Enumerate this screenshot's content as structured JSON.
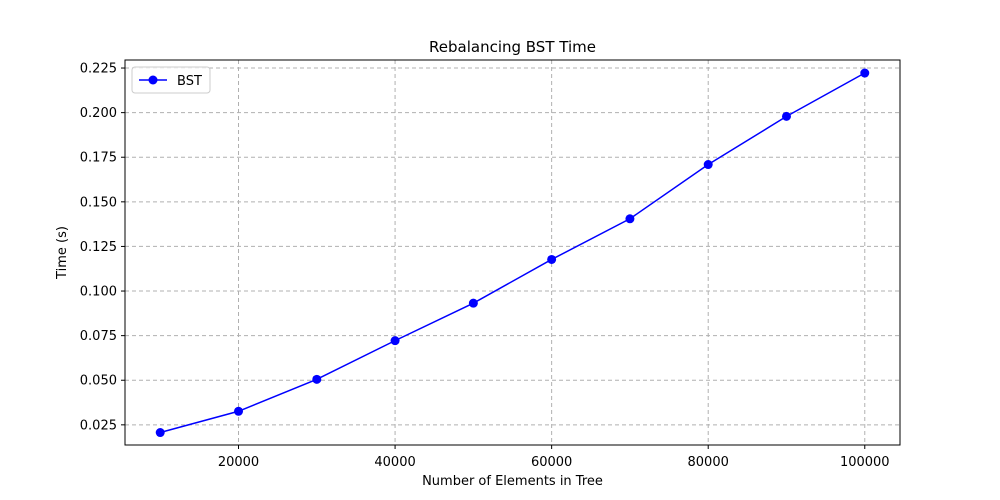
{
  "chart_data": {
    "type": "line",
    "title": "Rebalancing BST Time",
    "xlabel": "Number of Elements in Tree",
    "ylabel": "Time (s)",
    "xlim": [
      5500,
      104500
    ],
    "ylim": [
      0.0137,
      0.2295
    ],
    "x_ticks": [
      20000,
      40000,
      60000,
      80000,
      100000
    ],
    "x_tick_labels": [
      "20000",
      "40000",
      "60000",
      "80000",
      "100000"
    ],
    "y_ticks": [
      0.025,
      0.05,
      0.075,
      0.1,
      0.125,
      0.15,
      0.175,
      0.2,
      0.225
    ],
    "y_tick_labels": [
      "0.025",
      "0.050",
      "0.075",
      "0.100",
      "0.125",
      "0.150",
      "0.175",
      "0.200",
      "0.225"
    ],
    "grid": true,
    "legend_position": "top-left",
    "series": [
      {
        "name": "BST",
        "color": "#0000ff",
        "marker": "circle",
        "x": [
          10000,
          20000,
          30000,
          40000,
          50000,
          60000,
          70000,
          80000,
          90000,
          100000
        ],
        "y": [
          0.0207,
          0.0326,
          0.0505,
          0.0722,
          0.0932,
          0.1177,
          0.1405,
          0.1709,
          0.1979,
          0.2222
        ]
      }
    ]
  }
}
